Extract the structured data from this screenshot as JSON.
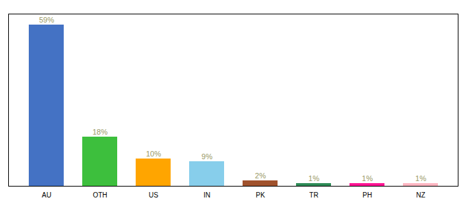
{
  "chart_data": {
    "type": "bar",
    "categories": [
      "AU",
      "OTH",
      "US",
      "IN",
      "PK",
      "TR",
      "PH",
      "NZ"
    ],
    "values": [
      59,
      18,
      10,
      9,
      2,
      1,
      1,
      1
    ],
    "value_labels": [
      "59%",
      "18%",
      "10%",
      "9%",
      "2%",
      "1%",
      "1%",
      "1%"
    ],
    "colors": [
      "#4472C4",
      "#3DBF3D",
      "#FFA500",
      "#87CEEB",
      "#A0522D",
      "#2E8B57",
      "#FF1493",
      "#FFB6C1"
    ],
    "ylim": [
      0,
      63
    ],
    "data_labels": true,
    "tick_labels": "x",
    "grid": false
  }
}
